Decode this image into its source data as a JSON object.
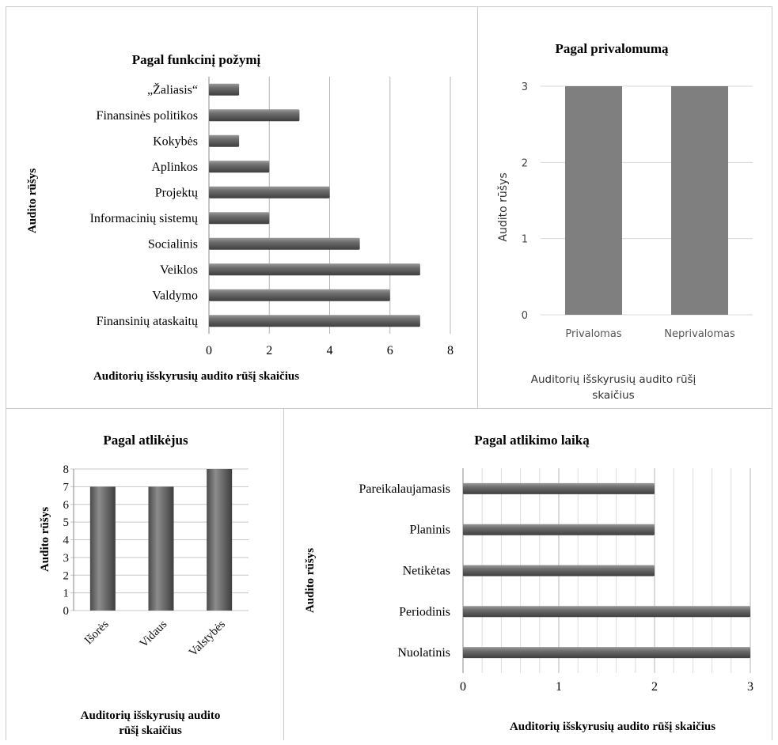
{
  "chart_data": [
    {
      "id": "functional",
      "type": "bar",
      "orientation": "horizontal",
      "title": "Pagal funkcinį požymį",
      "ylabel": "Audito rūšys",
      "xlabel": "Auditorių išskyrusių audito rūšį skaičius",
      "categories": [
        "Finansinių ataskaitų",
        "Valdymo",
        "Veiklos",
        "Socialinis",
        "Informacinių sistemų",
        "Projektų",
        "Aplinkos",
        "Kokybės",
        "Finansinės politikos",
        "„Žaliasis“"
      ],
      "values": [
        7,
        6,
        7,
        5,
        2,
        4,
        2,
        1,
        3,
        1
      ],
      "xlim": [
        0,
        8
      ],
      "ticks": [
        "0",
        "2",
        "4",
        "6",
        "8"
      ],
      "grid": true
    },
    {
      "id": "mandatory",
      "type": "bar",
      "orientation": "vertical",
      "title": "Pagal privalomumą",
      "ylabel": "Audito rūšys",
      "xlabel": "Auditorių išskyrusių audito rūšį skaičius",
      "categories": [
        "Privalomas",
        "Neprivalomas"
      ],
      "values": [
        3,
        3
      ],
      "ylim": [
        0,
        3
      ],
      "ticks": [
        "0",
        "1",
        "2",
        "3"
      ],
      "grid": true,
      "bar_color": "#7f7f7f"
    },
    {
      "id": "performers",
      "type": "bar",
      "orientation": "vertical",
      "title": "Pagal atlikėjus",
      "ylabel": "Audito rūšys",
      "xlabel": "Auditorių išskyrusių audito rūšį skaičius",
      "categories": [
        "Išorės",
        "Vidaus",
        "Valstybės"
      ],
      "values": [
        7,
        7,
        8
      ],
      "ylim": [
        0,
        8
      ],
      "ticks": [
        "0",
        "1",
        "2",
        "3",
        "4",
        "5",
        "6",
        "7",
        "8"
      ],
      "grid": true
    },
    {
      "id": "timing",
      "type": "bar",
      "orientation": "horizontal",
      "title": "Pagal atlikimo laiką",
      "ylabel": "Audito rūšys",
      "xlabel": "Auditorių išskyrusių audito rūšį skaičius",
      "categories": [
        "Nuolatinis",
        "Periodinis",
        "Netikėtas",
        "Planinis",
        "Pareikalaujamasis"
      ],
      "values": [
        3,
        3,
        2,
        2,
        2
      ],
      "xlim": [
        0,
        3
      ],
      "ticks": [
        "0",
        "1",
        "2",
        "3"
      ],
      "grid": true
    }
  ]
}
